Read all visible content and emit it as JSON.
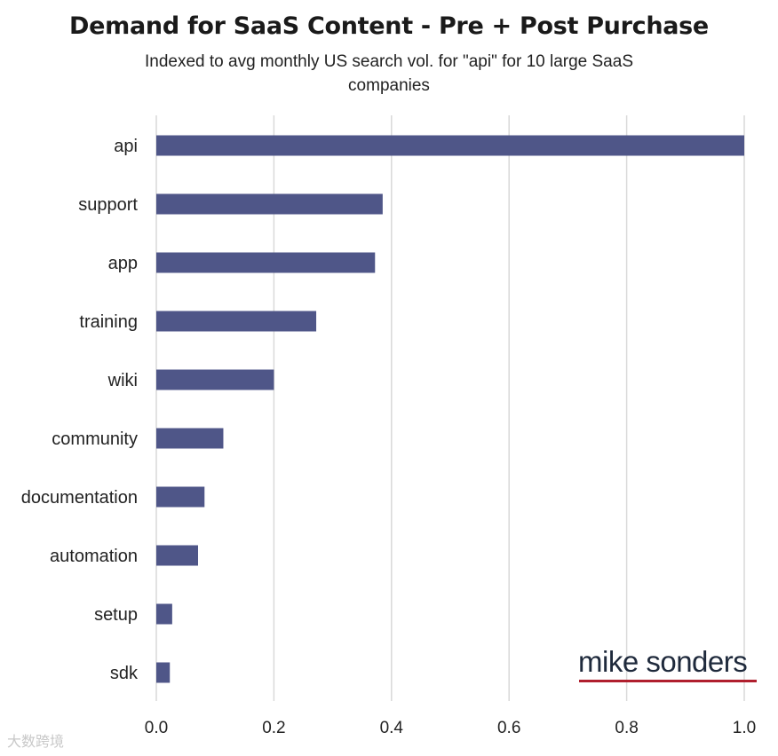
{
  "chart_data": {
    "type": "bar",
    "orientation": "horizontal",
    "title": "Demand for SaaS Content - Pre + Post Purchase",
    "subtitle": "Indexed to avg monthly US search vol. for \"api\" for 10 large SaaS companies",
    "categories": [
      "api",
      "support",
      "app",
      "training",
      "wiki",
      "community",
      "documentation",
      "automation",
      "setup",
      "sdk"
    ],
    "values": [
      1.0,
      0.385,
      0.372,
      0.272,
      0.2,
      0.114,
      0.082,
      0.071,
      0.027,
      0.023
    ],
    "xlim": [
      0,
      1.0
    ],
    "xticks": [
      "0.0",
      "0.2",
      "0.4",
      "0.6",
      "0.8",
      "1.0"
    ],
    "grid": "vertical",
    "bar_color": "#4f5688",
    "grid_color": "#d9d9d9"
  },
  "branding": {
    "logo_text": "mike sonders",
    "logo_underline_color": "#b01f2e"
  },
  "watermark": {
    "text": "大数跨境"
  }
}
